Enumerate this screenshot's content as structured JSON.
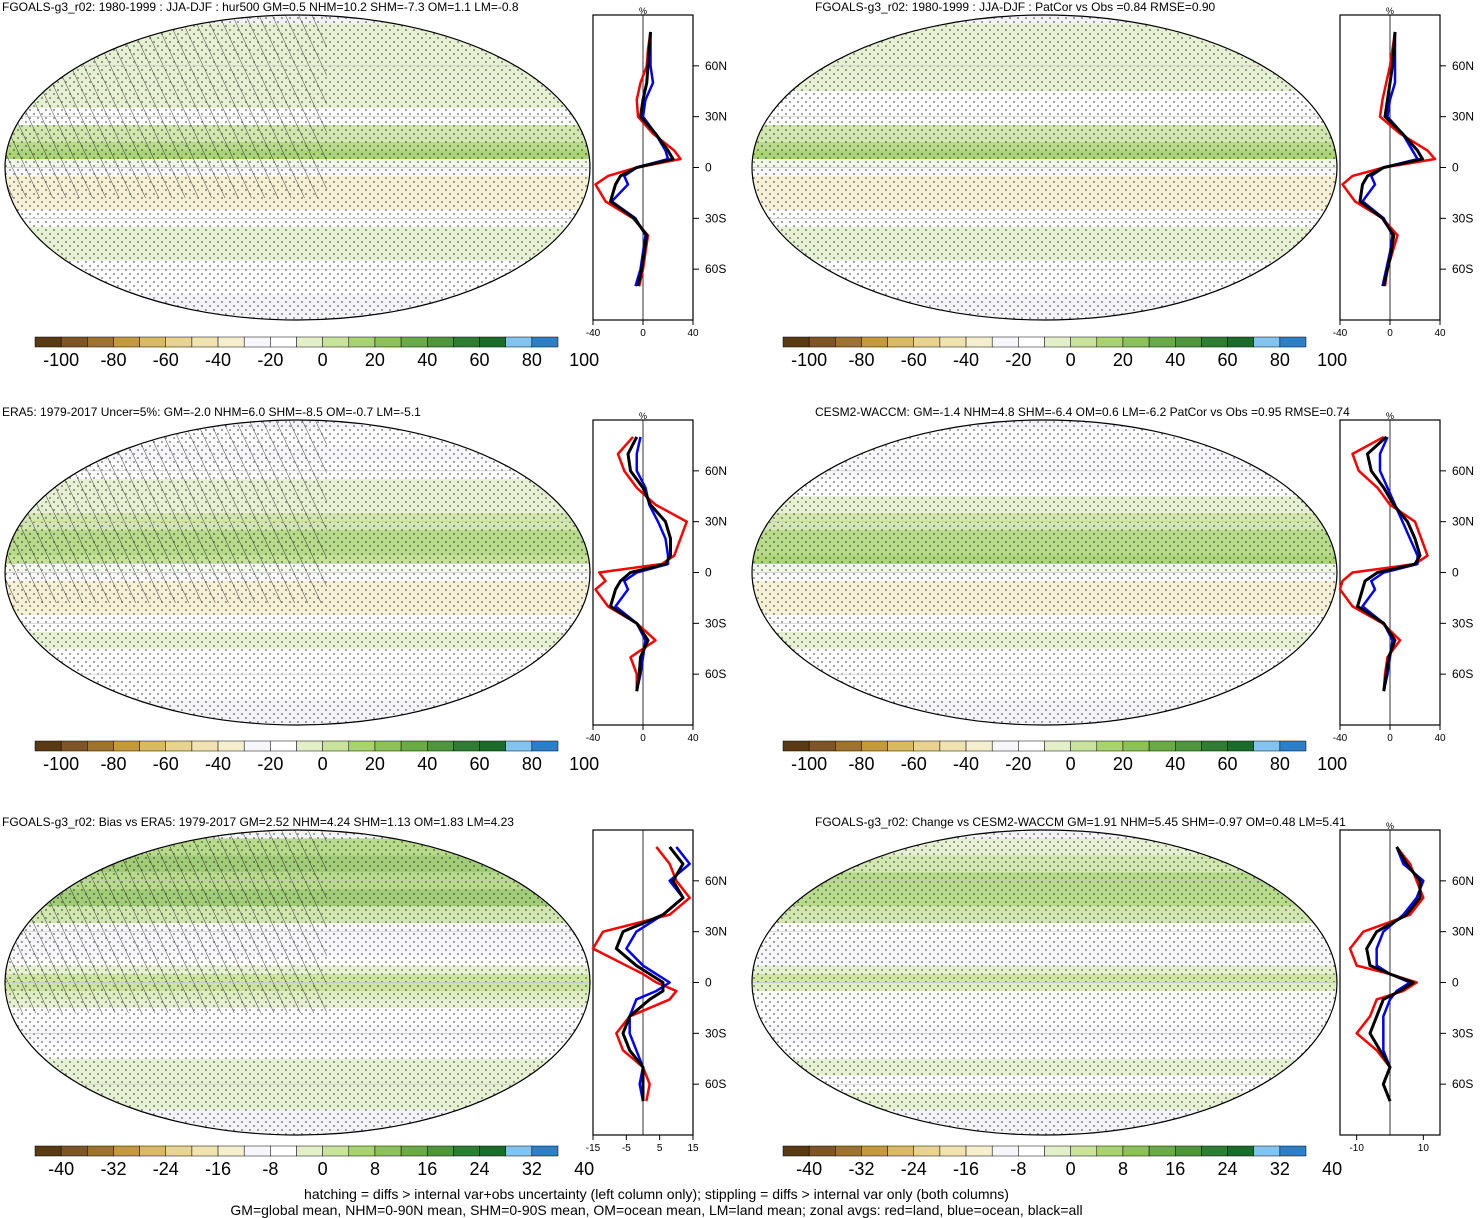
{
  "colors": {
    "palette": [
      "#5a3a12",
      "#7e5526",
      "#9e7330",
      "#c49a3c",
      "#d9b961",
      "#e8d390",
      "#f0e3b0",
      "#f6efcd",
      "#f7f7fb",
      "#ffffff",
      "#e2efc8",
      "#c9e39c",
      "#a8d36f",
      "#8cc258",
      "#6aaa47",
      "#4f953c",
      "#2e7d32",
      "#1b6b2a",
      "#82c4ef",
      "#2d7fc8"
    ],
    "land_line": "#ff0000",
    "ocean_line": "#0000ff",
    "all_line": "#000000"
  },
  "footer": {
    "line1": "hatching = diffs > internal var+obs uncertainty (left column only); stippling = diffs > internal var only (both columns)",
    "line2": "GM=global mean, NHM=0-90N mean, SHM=0-90S mean, OM=ocean mean, LM=land mean; zonal avgs: red=land, blue=ocean, black=all"
  },
  "chart_data": [
    {
      "type": "heatmap",
      "title": "FGOALS-g3_r02: 1980-1999 : JJA-DJF : hur500 GM=0.5 NHM=10.2 SHM=-7.3 OM=1.1 LM=-0.8",
      "hatching": true,
      "stippling": true,
      "colorbar_ticks": [
        "-100",
        "-80",
        "-60",
        "-40",
        "-20",
        "0",
        "20",
        "40",
        "60",
        "80",
        "100"
      ],
      "colorbar_range": [
        -100,
        100
      ],
      "zonal_avg": {
        "unit_label": "%",
        "xlim": [
          -40,
          40
        ],
        "x_ticks": [
          "-40",
          "0",
          "40"
        ],
        "lat_ticks": [
          "60N",
          "30N",
          "0",
          "30S",
          "60S"
        ],
        "lat": [
          80,
          70,
          60,
          50,
          40,
          30,
          20,
          10,
          5,
          0,
          -5,
          -10,
          -20,
          -30,
          -40,
          -50,
          -60,
          -70
        ],
        "series": [
          {
            "values": [
              6,
              4,
              3,
              -2,
              -5,
              -4,
              8,
              25,
              30,
              -5,
              -28,
              -38,
              -30,
              -8,
              4,
              2,
              0,
              -3
            ]
          },
          {
            "values": [
              6,
              6,
              6,
              8,
              2,
              0,
              10,
              18,
              20,
              -5,
              -15,
              -12,
              -25,
              -6,
              2,
              0,
              -2,
              -6
            ]
          },
          {
            "values": [
              6,
              5,
              4,
              3,
              0,
              -2,
              10,
              20,
              24,
              -5,
              -18,
              -22,
              -26,
              -7,
              3,
              1,
              -1,
              -4
            ]
          }
        ]
      }
    },
    {
      "type": "heatmap",
      "title": "FGOALS-g3_r02: 1980-1999 : JJA-DJF : PatCor vs Obs =0.84 RMSE=0.90",
      "hatching": false,
      "stippling": true,
      "colorbar_ticks": [
        "-100",
        "-80",
        "-60",
        "-40",
        "-20",
        "0",
        "20",
        "40",
        "60",
        "80",
        "100"
      ],
      "colorbar_range": [
        -100,
        100
      ],
      "zonal_avg": {
        "unit_label": "%",
        "xlim": [
          -40,
          40
        ],
        "x_ticks": [
          "-40",
          "0",
          "40"
        ],
        "lat_ticks": [
          "60N",
          "30N",
          "0",
          "30S",
          "60S"
        ],
        "lat": [
          80,
          70,
          60,
          50,
          40,
          30,
          20,
          10,
          5,
          0,
          -5,
          -10,
          -20,
          -30,
          -40,
          -50,
          -60,
          -70
        ],
        "series": [
          {
            "values": [
              4,
              2,
              0,
              -3,
              -6,
              -8,
              8,
              30,
              36,
              -5,
              -30,
              -38,
              -28,
              -6,
              6,
              2,
              -2,
              -4
            ]
          },
          {
            "values": [
              4,
              4,
              4,
              4,
              0,
              -2,
              10,
              18,
              22,
              -5,
              -15,
              -12,
              -22,
              -5,
              2,
              0,
              -3,
              -6
            ]
          },
          {
            "values": [
              4,
              3,
              2,
              0,
              -2,
              -4,
              10,
              22,
              26,
              -5,
              -18,
              -22,
              -24,
              -6,
              3,
              1,
              -2,
              -5
            ]
          }
        ]
      }
    },
    {
      "type": "heatmap",
      "title": "ERA5: 1979-2017 Uncer=5%: GM=-2.0 NHM=6.0 SHM=-8.5 OM=-0.7 LM=-5.1",
      "hatching": true,
      "stippling": true,
      "colorbar_ticks": [
        "-100",
        "-80",
        "-60",
        "-40",
        "-20",
        "0",
        "20",
        "40",
        "60",
        "80",
        "100"
      ],
      "colorbar_range": [
        -100,
        100
      ],
      "zonal_avg": {
        "unit_label": "%",
        "xlim": [
          -40,
          40
        ],
        "x_ticks": [
          "-40",
          "0",
          "40"
        ],
        "lat_ticks": [
          "60N",
          "30N",
          "0",
          "30S",
          "60S"
        ],
        "lat": [
          80,
          70,
          60,
          50,
          40,
          30,
          20,
          10,
          5,
          0,
          -5,
          -10,
          -20,
          -30,
          -40,
          -50,
          -60,
          -70
        ],
        "series": [
          {
            "values": [
              -8,
              -20,
              -15,
              -5,
              10,
              35,
              30,
              25,
              15,
              -35,
              -30,
              -38,
              -28,
              -5,
              10,
              -10,
              -5,
              -5
            ]
          },
          {
            "values": [
              -2,
              -5,
              -5,
              2,
              5,
              12,
              18,
              20,
              20,
              -5,
              -15,
              -12,
              -22,
              -5,
              2,
              0,
              -2,
              -5
            ]
          },
          {
            "values": [
              -5,
              -12,
              -10,
              0,
              6,
              18,
              22,
              22,
              18,
              -10,
              -18,
              -22,
              -26,
              -5,
              4,
              -2,
              -3,
              -5
            ]
          }
        ]
      }
    },
    {
      "type": "heatmap",
      "title": "CESM2-WACCM: GM=-1.4 NHM=4.8 SHM=-6.4 OM=0.6 LM=-6.2 PatCor vs Obs =0.95 RMSE=0.74",
      "hatching": false,
      "stippling": true,
      "colorbar_ticks": [
        "-100",
        "-80",
        "-60",
        "-40",
        "-20",
        "0",
        "20",
        "40",
        "60",
        "80",
        "100"
      ],
      "colorbar_range": [
        -100,
        100
      ],
      "zonal_avg": {
        "unit_label": "%",
        "xlim": [
          -40,
          40
        ],
        "x_ticks": [
          "-40",
          "0",
          "40"
        ],
        "lat_ticks": [
          "60N",
          "30N",
          "0",
          "30S",
          "60S"
        ],
        "lat": [
          80,
          70,
          60,
          50,
          40,
          30,
          20,
          10,
          5,
          0,
          -5,
          -10,
          -20,
          -30,
          -40,
          -50,
          -60,
          -70
        ],
        "series": [
          {
            "values": [
              -5,
              -30,
              -25,
              -10,
              0,
              20,
              25,
              30,
              20,
              -30,
              -38,
              -40,
              -30,
              -6,
              8,
              -2,
              -4,
              -5
            ]
          },
          {
            "values": [
              -2,
              -8,
              -8,
              -2,
              4,
              10,
              16,
              22,
              22,
              -5,
              -15,
              -12,
              -22,
              -5,
              2,
              0,
              -2,
              -5
            ]
          },
          {
            "values": [
              -3,
              -18,
              -15,
              -5,
              3,
              14,
              20,
              24,
              20,
              -10,
              -20,
              -22,
              -26,
              -5,
              4,
              -1,
              -3,
              -5
            ]
          }
        ]
      }
    },
    {
      "type": "heatmap",
      "title": "FGOALS-g3_r02: Bias vs ERA5: 1979-2017 GM=2.52 NHM=4.24 SHM=1.13 OM=1.83 LM=4.23",
      "hatching": true,
      "stippling": true,
      "colorbar_ticks": [
        "-40",
        "-32",
        "-24",
        "-16",
        "-8",
        "0",
        "8",
        "16",
        "24",
        "32",
        "40"
      ],
      "colorbar_range": [
        -40,
        40
      ],
      "zonal_avg": {
        "unit_label": "",
        "xlim": [
          -15,
          15
        ],
        "x_ticks": [
          "-15",
          "-5",
          "5",
          "15"
        ],
        "lat_ticks": [
          "60N",
          "30N",
          "0",
          "30S",
          "60S"
        ],
        "lat": [
          80,
          70,
          60,
          50,
          40,
          30,
          20,
          10,
          5,
          0,
          -5,
          -10,
          -20,
          -30,
          -40,
          -50,
          -60,
          -70
        ],
        "series": [
          {
            "values": [
              4,
              8,
              10,
              14,
              8,
              -12,
              -15,
              -5,
              0,
              4,
              10,
              8,
              -4,
              -8,
              -6,
              0,
              2,
              1
            ]
          },
          {
            "values": [
              10,
              14,
              8,
              12,
              6,
              -2,
              -5,
              0,
              4,
              8,
              4,
              -2,
              -4,
              -4,
              -2,
              0,
              -1,
              0
            ]
          },
          {
            "values": [
              8,
              12,
              9,
              12,
              6,
              -6,
              -8,
              -2,
              2,
              6,
              6,
              2,
              -4,
              -6,
              -4,
              0,
              0,
              0
            ]
          }
        ]
      }
    },
    {
      "type": "heatmap",
      "title": "FGOALS-g3_r02: Change vs CESM2-WACCM GM=1.91 NHM=5.45 SHM=-0.97 OM=0.48 LM=5.41",
      "hatching": false,
      "stippling": true,
      "colorbar_ticks": [
        "-40",
        "-32",
        "-24",
        "-16",
        "-8",
        "0",
        "8",
        "16",
        "24",
        "32",
        "40"
      ],
      "colorbar_range": [
        -40,
        40
      ],
      "zonal_avg": {
        "unit_label": "%",
        "xlim": [
          -15,
          15
        ],
        "x_ticks": [
          "-10",
          "10"
        ],
        "lat_ticks": [
          "60N",
          "30N",
          "0",
          "30S",
          "60S"
        ],
        "lat": [
          80,
          70,
          60,
          50,
          40,
          30,
          20,
          10,
          5,
          0,
          -5,
          -10,
          -20,
          -30,
          -40,
          -50,
          -60,
          -70
        ],
        "series": [
          {
            "values": [
              2,
              6,
              8,
              10,
              6,
              -8,
              -12,
              -10,
              0,
              8,
              4,
              -4,
              -6,
              -10,
              -4,
              0,
              -2,
              0
            ]
          },
          {
            "values": [
              2,
              4,
              10,
              8,
              4,
              -2,
              -4,
              -4,
              0,
              6,
              2,
              0,
              -2,
              -2,
              -2,
              0,
              -2,
              0
            ]
          },
          {
            "values": [
              2,
              5,
              9,
              9,
              5,
              -4,
              -7,
              -6,
              0,
              7,
              3,
              -2,
              -4,
              -6,
              -3,
              0,
              -2,
              0
            ]
          }
        ]
      }
    }
  ]
}
